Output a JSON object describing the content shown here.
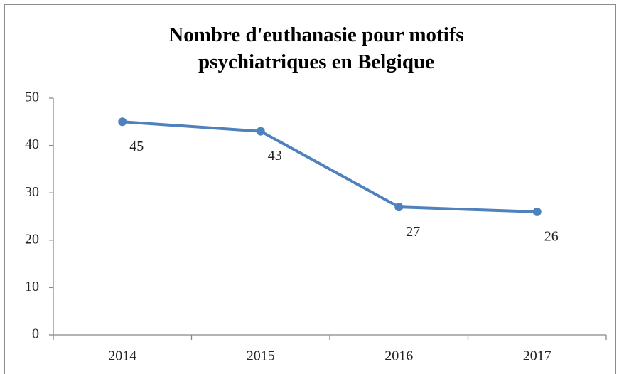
{
  "chart_data": {
    "type": "line",
    "title": "Nombre d'euthanasie pour motifs psychiatriques en Belgique",
    "categories": [
      "2014",
      "2015",
      "2016",
      "2017"
    ],
    "values": [
      45,
      43,
      27,
      26
    ],
    "color": "#4f81bd",
    "ylim": [
      0,
      50
    ],
    "yticks": [
      0,
      10,
      20,
      30,
      40,
      50
    ],
    "grid": false
  }
}
